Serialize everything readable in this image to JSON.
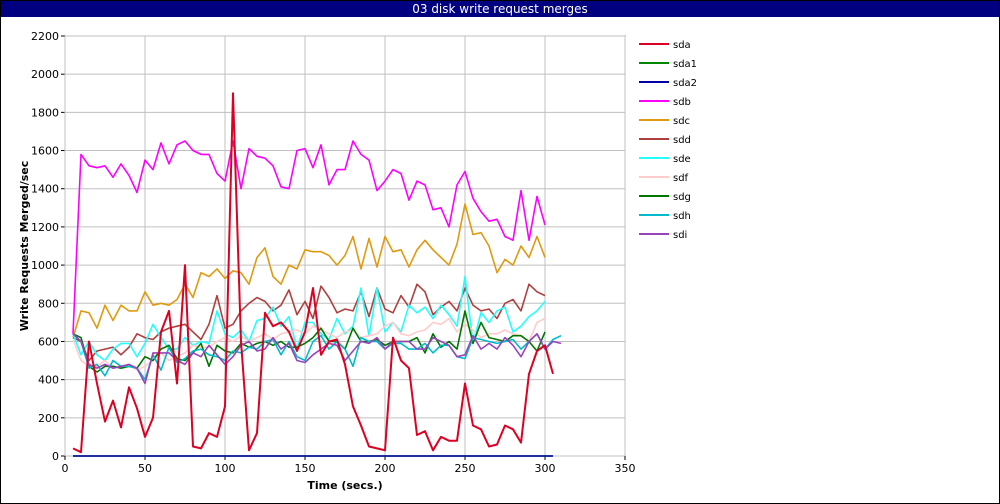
{
  "window": {
    "title": "03 disk write request merges"
  },
  "chart_data": {
    "type": "line",
    "title": "03 disk write request merges",
    "xlabel": "Time (secs.)",
    "ylabel": "Write Requests Merged/sec",
    "xlim": [
      0,
      350
    ],
    "ylim": [
      0,
      2200
    ],
    "xticks": [
      0,
      50,
      100,
      150,
      200,
      250,
      300,
      350
    ],
    "yticks": [
      0,
      200,
      400,
      600,
      800,
      1000,
      1200,
      1400,
      1600,
      1800,
      2000,
      2200
    ],
    "grid": true,
    "legend_position": "right",
    "x": [
      5,
      10,
      15,
      20,
      25,
      30,
      35,
      40,
      45,
      50,
      55,
      60,
      65,
      70,
      75,
      80,
      85,
      90,
      95,
      100,
      105,
      110,
      115,
      120,
      125,
      130,
      135,
      140,
      145,
      150,
      155,
      160,
      165,
      170,
      175,
      180,
      185,
      190,
      195,
      200,
      205,
      210,
      215,
      220,
      225,
      230,
      235,
      240,
      245,
      250,
      255,
      260,
      265,
      270,
      275,
      280,
      285,
      290,
      295,
      300,
      305,
      310
    ],
    "series": [
      {
        "name": "sda",
        "color": "#dd0022",
        "values": [
          40,
          20,
          600,
          380,
          180,
          290,
          150,
          360,
          250,
          100,
          200,
          650,
          760,
          380,
          1000,
          50,
          40,
          120,
          100,
          260,
          1900,
          600,
          30,
          120,
          750,
          680,
          700,
          650,
          550,
          650,
          880,
          530,
          600,
          610,
          480,
          260,
          160,
          50,
          40,
          30,
          620,
          500,
          460,
          110,
          130,
          30,
          100,
          80,
          80,
          380,
          160,
          140,
          50,
          60,
          160,
          140,
          70,
          430,
          550,
          580,
          430,
          null
        ]
      },
      {
        "name": "sda1",
        "color": "#008800",
        "values": [
          0,
          0,
          0,
          0,
          0,
          0,
          0,
          0,
          0,
          0,
          0,
          0,
          0,
          0,
          0,
          0,
          0,
          0,
          0,
          0,
          0,
          0,
          0,
          0,
          0,
          0,
          0,
          0,
          0,
          0,
          0,
          0,
          0,
          0,
          0,
          0,
          0,
          0,
          0,
          0,
          0,
          0,
          0,
          0,
          0,
          0,
          0,
          0,
          0,
          0,
          0,
          0,
          0,
          0,
          0,
          0,
          0,
          0,
          0,
          0,
          0,
          null
        ]
      },
      {
        "name": "sda2",
        "color": "#0000aa",
        "values": [
          0,
          0,
          0,
          0,
          0,
          0,
          0,
          0,
          0,
          0,
          0,
          0,
          0,
          0,
          0,
          0,
          0,
          0,
          0,
          0,
          0,
          0,
          0,
          0,
          0,
          0,
          0,
          0,
          0,
          0,
          0,
          0,
          0,
          0,
          0,
          0,
          0,
          0,
          0,
          0,
          0,
          0,
          0,
          0,
          0,
          0,
          0,
          0,
          0,
          0,
          0,
          0,
          0,
          0,
          0,
          0,
          0,
          0,
          0,
          0,
          0,
          null
        ]
      },
      {
        "name": "sdb",
        "color": "#ff00ff",
        "values": [
          640,
          1580,
          1520,
          1510,
          1520,
          1460,
          1530,
          1470,
          1380,
          1550,
          1500,
          1640,
          1530,
          1630,
          1650,
          1600,
          1580,
          1580,
          1480,
          1440,
          1650,
          1400,
          1610,
          1570,
          1560,
          1520,
          1410,
          1400,
          1600,
          1610,
          1510,
          1630,
          1420,
          1500,
          1500,
          1650,
          1580,
          1550,
          1390,
          1440,
          1500,
          1480,
          1340,
          1440,
          1420,
          1290,
          1300,
          1200,
          1420,
          1490,
          1350,
          1280,
          1230,
          1240,
          1150,
          1130,
          1390,
          1130,
          1360,
          1210,
          null,
          null
        ]
      },
      {
        "name": "sdc",
        "color": "#e09a10",
        "values": [
          620,
          760,
          750,
          670,
          790,
          710,
          790,
          760,
          760,
          860,
          790,
          800,
          790,
          820,
          900,
          830,
          960,
          940,
          980,
          930,
          970,
          960,
          900,
          1040,
          1090,
          940,
          900,
          1000,
          980,
          1080,
          1070,
          1070,
          1050,
          1000,
          1050,
          1150,
          980,
          1140,
          990,
          1150,
          1070,
          1080,
          990,
          1080,
          1130,
          1080,
          1040,
          1000,
          1110,
          1320,
          1160,
          1170,
          1100,
          960,
          1030,
          1000,
          1100,
          1040,
          1150,
          1040,
          null,
          null
        ]
      },
      {
        "name": "sdd",
        "color": "#b04040",
        "values": [
          620,
          600,
          500,
          550,
          560,
          570,
          530,
          570,
          640,
          620,
          610,
          650,
          670,
          680,
          690,
          650,
          610,
          690,
          840,
          670,
          690,
          760,
          800,
          830,
          810,
          760,
          790,
          870,
          740,
          810,
          720,
          890,
          830,
          750,
          770,
          760,
          860,
          730,
          880,
          770,
          750,
          840,
          780,
          900,
          860,
          740,
          780,
          810,
          760,
          880,
          790,
          760,
          770,
          720,
          800,
          820,
          760,
          900,
          860,
          840,
          null,
          null
        ]
      },
      {
        "name": "sde",
        "color": "#22ffff",
        "values": [
          640,
          530,
          600,
          530,
          500,
          560,
          590,
          590,
          520,
          590,
          690,
          620,
          560,
          560,
          620,
          580,
          600,
          590,
          760,
          640,
          620,
          660,
          600,
          710,
          720,
          780,
          680,
          730,
          560,
          700,
          700,
          640,
          610,
          720,
          640,
          680,
          880,
          630,
          880,
          650,
          700,
          650,
          790,
          750,
          780,
          720,
          790,
          740,
          680,
          940,
          590,
          750,
          700,
          760,
          780,
          650,
          680,
          730,
          760,
          810,
          null,
          null
        ]
      },
      {
        "name": "sdf",
        "color": "#ffcccc",
        "values": [
          610,
          500,
          470,
          470,
          500,
          460,
          470,
          480,
          450,
          470,
          500,
          540,
          500,
          520,
          540,
          580,
          570,
          570,
          600,
          620,
          600,
          630,
          600,
          620,
          640,
          610,
          640,
          650,
          660,
          640,
          680,
          660,
          640,
          620,
          650,
          660,
          620,
          630,
          640,
          680,
          700,
          640,
          630,
          650,
          660,
          700,
          690,
          720,
          650,
          690,
          660,
          620,
          640,
          640,
          660,
          640,
          630,
          600,
          700,
          720,
          null,
          null
        ]
      },
      {
        "name": "sdg",
        "color": "#007700",
        "values": [
          640,
          620,
          470,
          440,
          470,
          470,
          460,
          470,
          460,
          520,
          500,
          560,
          580,
          510,
          500,
          540,
          590,
          470,
          580,
          550,
          540,
          590,
          570,
          590,
          600,
          580,
          600,
          570,
          570,
          590,
          620,
          670,
          600,
          600,
          560,
          670,
          600,
          600,
          610,
          580,
          600,
          600,
          600,
          620,
          540,
          640,
          570,
          600,
          560,
          760,
          590,
          700,
          620,
          610,
          600,
          630,
          630,
          600,
          550,
          650,
          null,
          null
        ]
      },
      {
        "name": "sdh",
        "color": "#00bbcc",
        "values": [
          640,
          600,
          460,
          480,
          420,
          500,
          470,
          470,
          460,
          400,
          530,
          450,
          570,
          490,
          510,
          550,
          560,
          530,
          520,
          500,
          550,
          540,
          570,
          560,
          600,
          610,
          530,
          600,
          520,
          500,
          600,
          630,
          560,
          600,
          560,
          470,
          620,
          600,
          600,
          560,
          590,
          590,
          560,
          560,
          590,
          540,
          580,
          580,
          520,
          510,
          620,
          610,
          600,
          590,
          600,
          610,
          560,
          600,
          640,
          560,
          610,
          630
        ]
      },
      {
        "name": "sdi",
        "color": "#9944bb",
        "values": [
          640,
          600,
          480,
          460,
          480,
          460,
          470,
          480,
          460,
          380,
          540,
          540,
          540,
          500,
          480,
          540,
          520,
          580,
          530,
          480,
          520,
          580,
          600,
          550,
          560,
          620,
          560,
          590,
          500,
          490,
          530,
          560,
          590,
          580,
          500,
          550,
          600,
          590,
          620,
          560,
          600,
          600,
          600,
          560,
          560,
          620,
          600,
          580,
          520,
          530,
          630,
          560,
          590,
          560,
          620,
          580,
          520,
          600,
          640,
          560,
          600,
          590
        ]
      }
    ]
  }
}
